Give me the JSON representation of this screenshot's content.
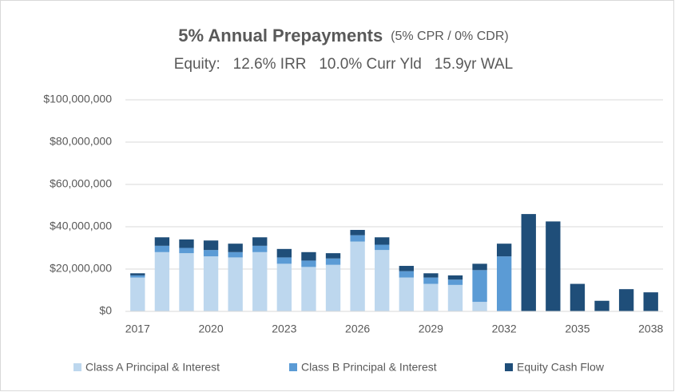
{
  "chart_data": {
    "type": "stacked_bar",
    "title": "5% Annual Prepayments",
    "title_note": "(5% CPR / 0% CDR)",
    "subtitle": "Equity:   12.6% IRR   10.0% Curr Yld   15.9yr WAL",
    "categories": [
      "2017",
      null,
      null,
      "2020",
      null,
      null,
      "2023",
      null,
      null,
      "2026",
      null,
      null,
      "2029",
      null,
      null,
      "2032",
      null,
      null,
      "2035",
      null,
      null,
      "2038"
    ],
    "series": [
      {
        "name": "Class A Principal & Interest",
        "color": "#bdd7ee",
        "values": [
          16000000,
          28000000,
          27500000,
          26000000,
          25500000,
          28000000,
          22500000,
          21000000,
          22000000,
          33000000,
          29000000,
          16000000,
          13000000,
          12500000,
          4500000,
          0,
          0,
          0,
          0,
          0,
          0,
          0
        ]
      },
      {
        "name": "Class B Principal & Interest",
        "color": "#5b9bd5",
        "values": [
          1000000,
          3000000,
          2500000,
          3000000,
          2500000,
          3000000,
          3000000,
          3000000,
          3000000,
          3000000,
          2500000,
          3000000,
          3000000,
          2500000,
          15000000,
          26000000,
          0,
          0,
          0,
          0,
          0,
          0
        ]
      },
      {
        "name": "Equity Cash Flow",
        "color": "#1f4e79",
        "values": [
          1000000,
          4000000,
          4000000,
          4500000,
          4000000,
          4000000,
          4000000,
          4000000,
          2500000,
          2500000,
          3500000,
          2500000,
          2000000,
          2000000,
          3000000,
          6000000,
          46000000,
          42500000,
          13000000,
          5000000,
          10500000,
          9000000
        ]
      }
    ],
    "ylim": [
      0,
      100000000
    ],
    "yticks": [
      {
        "value": 0,
        "label": "$0"
      },
      {
        "value": 20000000,
        "label": "$20,000,000"
      },
      {
        "value": 40000000,
        "label": "$40,000,000"
      },
      {
        "value": 60000000,
        "label": "$60,000,000"
      },
      {
        "value": 80000000,
        "label": "$80,000,000"
      },
      {
        "value": 100000000,
        "label": "$100,000,000"
      }
    ],
    "grid": true,
    "legend": "bottom"
  }
}
